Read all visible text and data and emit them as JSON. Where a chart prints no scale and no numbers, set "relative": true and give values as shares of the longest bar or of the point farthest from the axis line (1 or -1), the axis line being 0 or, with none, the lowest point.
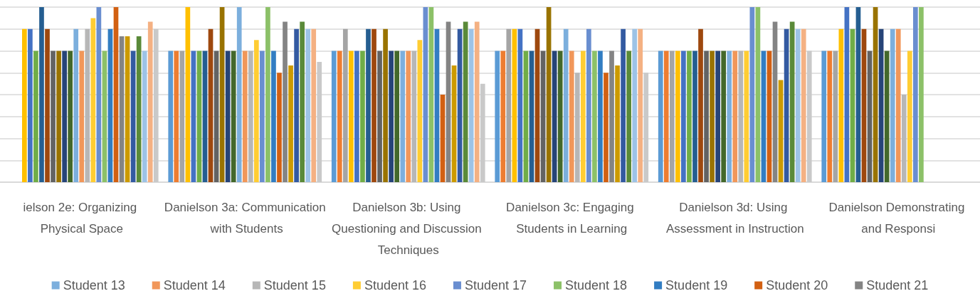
{
  "chart_data": {
    "type": "bar",
    "relative": true,
    "grid": "y",
    "legend": "bottom",
    "categories": [
      "ielson 2e: Organizing Physical Space",
      "Danielson 3a: Communication with Students",
      "Danielson 3b: Using Questioning and Discussion Techniques",
      "Danielson 3c: Engaging Students in Learning",
      "Danielson 3d: Using Assessment in Instruction",
      "Danielson Demonstrating and Responsi"
    ],
    "series": [
      {
        "color": "#5b9bd5",
        "values": [
          null,
          0.75,
          0.75,
          0.75,
          0.75,
          0.75
        ]
      },
      {
        "color": "#ed7d31",
        "values": [
          null,
          0.75,
          0.75,
          0.75,
          0.75,
          0.75
        ]
      },
      {
        "color": "#a5a5a5",
        "values": [
          null,
          0.75,
          0.875,
          0.875,
          0.75,
          0.75
        ]
      },
      {
        "color": "#ffc000",
        "values": [
          0.875,
          1,
          0.75,
          0.875,
          0.75,
          0.875
        ]
      },
      {
        "color": "#4472c4",
        "values": [
          0.875,
          0.75,
          0.75,
          0.875,
          0.75,
          1
        ]
      },
      {
        "color": "#70ad47",
        "values": [
          0.75,
          0.75,
          0.75,
          0.75,
          0.75,
          0.875
        ]
      },
      {
        "color": "#255e91",
        "values": [
          1,
          0.75,
          0.875,
          0.75,
          0.75,
          1
        ]
      },
      {
        "color": "#9e480e",
        "values": [
          0.875,
          0.875,
          0.875,
          0.875,
          0.875,
          0.875
        ]
      },
      {
        "color": "#636363",
        "values": [
          0.75,
          0.75,
          0.75,
          0.75,
          0.75,
          0.75
        ]
      },
      {
        "color": "#997300",
        "values": [
          0.75,
          1,
          0.875,
          1,
          0.75,
          1
        ]
      },
      {
        "color": "#264478",
        "values": [
          0.75,
          0.75,
          0.75,
          0.75,
          0.75,
          0.875
        ]
      },
      {
        "color": "#43682b",
        "values": [
          0.75,
          0.75,
          0.75,
          0.75,
          0.75,
          0.75
        ]
      },
      {
        "name": "Student 13",
        "color": "#7cafdd",
        "values": [
          0.875,
          1,
          0.75,
          0.875,
          0.75,
          0.875
        ]
      },
      {
        "name": "Student 14",
        "color": "#f1975a",
        "values": [
          0.75,
          0.75,
          0.75,
          0.75,
          0.75,
          0.875
        ]
      },
      {
        "name": "Student 15",
        "color": "#b7b7b7",
        "values": [
          0.875,
          0.75,
          0.75,
          0.625,
          0.75,
          0.5
        ]
      },
      {
        "name": "Student 16",
        "color": "#ffcd33",
        "values": [
          0.9375,
          0.8125,
          0.8125,
          0.75,
          0.75,
          0.75
        ]
      },
      {
        "name": "Student 17",
        "color": "#698ed0",
        "values": [
          1,
          0.75,
          1,
          0.875,
          1,
          1
        ]
      },
      {
        "name": "Student 18",
        "color": "#8cc168",
        "values": [
          0.75,
          1,
          1,
          0.75,
          1,
          1
        ]
      },
      {
        "name": "Student 19",
        "color": "#327dc2",
        "values": [
          0.875,
          0.75,
          0.875,
          0.75,
          0.75,
          null
        ]
      },
      {
        "name": "Student 20",
        "color": "#d26012",
        "values": [
          1,
          0.625,
          0.5,
          0.625,
          0.75,
          null
        ]
      },
      {
        "name": "Student 21",
        "color": "#848484",
        "values": [
          0.833,
          0.917,
          0.917,
          0.75,
          0.917,
          null
        ]
      },
      {
        "color": "#cc9a00",
        "values": [
          0.833,
          0.667,
          0.667,
          0.667,
          0.583,
          null
        ]
      },
      {
        "color": "#335aa1",
        "values": [
          0.75,
          0.875,
          0.875,
          0.875,
          0.875,
          null
        ]
      },
      {
        "color": "#5a8a39",
        "values": [
          0.833,
          0.917,
          0.917,
          0.75,
          0.917,
          null
        ]
      },
      {
        "color": "#9dc3e6",
        "values": [
          0.75,
          0.875,
          0.875,
          0.875,
          0.875,
          null
        ]
      },
      {
        "color": "#f4b183",
        "values": [
          0.917,
          0.875,
          0.917,
          0.875,
          0.875,
          null
        ]
      },
      {
        "color": "#c9c9c9",
        "values": [
          0.875,
          0.6875,
          0.5625,
          0.625,
          0.75,
          null
        ]
      }
    ]
  }
}
